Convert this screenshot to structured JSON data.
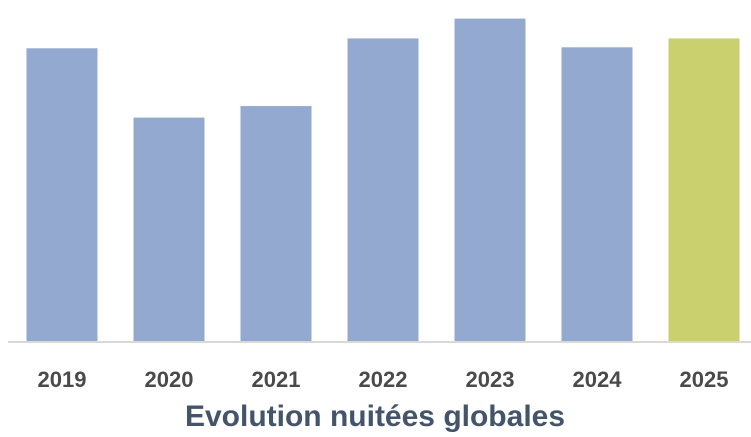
{
  "chart_data": {
    "type": "bar",
    "title": "Evolution nuitées globales",
    "xlabel": "",
    "ylabel": "",
    "categories": [
      "2019",
      "2020",
      "2021",
      "2022",
      "2023",
      "2024",
      "2025"
    ],
    "values": [
      89,
      68,
      71.5,
      92,
      98,
      89.3,
      92
    ],
    "ylim": [
      0,
      100
    ],
    "grid": false,
    "legend": "none",
    "colors": {
      "default_bar": "#94a9d0",
      "highlight_bar": "#cbd06e",
      "axis_line": "#d9d9d9",
      "tick_label": "#4a4a4a",
      "title": "#44546a"
    },
    "highlight_category": "2025"
  }
}
